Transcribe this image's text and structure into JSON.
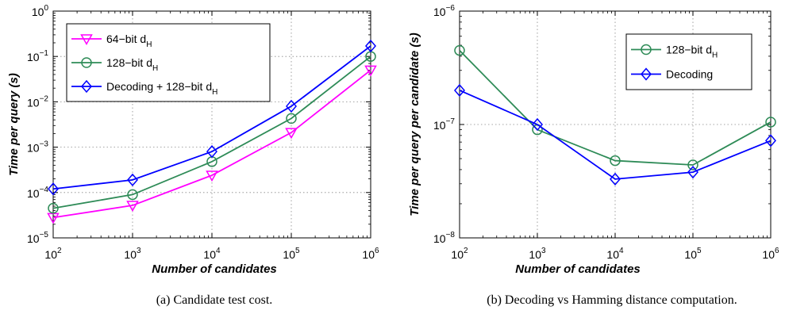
{
  "chart_data": [
    {
      "type": "line",
      "caption": "(a) Candidate test cost.",
      "xlabel": "Number of candidates",
      "ylabel": "Time per query (s)",
      "xscale": "log",
      "yscale": "log",
      "xlim": [
        100,
        1000000
      ],
      "ylim": [
        1e-05,
        1
      ],
      "grid": true,
      "legend_position": "top-left",
      "x": [
        100,
        1000,
        10000,
        100000,
        1000000
      ],
      "x_ticks": [
        {
          "base": "10",
          "exp": "2"
        },
        {
          "base": "10",
          "exp": "3"
        },
        {
          "base": "10",
          "exp": "4"
        },
        {
          "base": "10",
          "exp": "5"
        },
        {
          "base": "10",
          "exp": "6"
        }
      ],
      "y_ticks": [
        {
          "base": "10",
          "exp": "−5"
        },
        {
          "base": "10",
          "exp": "−4"
        },
        {
          "base": "10",
          "exp": "−3"
        },
        {
          "base": "10",
          "exp": "−2"
        },
        {
          "base": "10",
          "exp": "−1"
        },
        {
          "base": "10",
          "exp": "0"
        }
      ],
      "series": [
        {
          "name": "64−bit d",
          "name_sub": "H",
          "color": "#ff00ff",
          "marker": "triangle-down",
          "values": [
            2.8e-05,
            5.2e-05,
            0.00024,
            0.0021,
            0.05
          ]
        },
        {
          "name": "128−bit d",
          "name_sub": "H",
          "color": "#2e8b57",
          "marker": "circle",
          "values": [
            4.5e-05,
            9e-05,
            0.00048,
            0.0043,
            0.1
          ]
        },
        {
          "name": "Decoding + 128−bit d",
          "name_sub": "H",
          "color": "#0000ff",
          "marker": "diamond",
          "values": [
            0.00012,
            0.00019,
            0.0008,
            0.008,
            0.17
          ]
        }
      ]
    },
    {
      "type": "line",
      "caption": "(b) Decoding vs Hamming distance computation.",
      "xlabel": "Number of candidates",
      "ylabel": "Time per query per candidate (s)",
      "xscale": "log",
      "yscale": "log",
      "xlim": [
        100,
        1000000
      ],
      "ylim": [
        1e-08,
        1e-06
      ],
      "grid": true,
      "legend_position": "top-right",
      "x": [
        100,
        1000,
        10000,
        100000,
        1000000
      ],
      "x_ticks": [
        {
          "base": "10",
          "exp": "2"
        },
        {
          "base": "10",
          "exp": "3"
        },
        {
          "base": "10",
          "exp": "4"
        },
        {
          "base": "10",
          "exp": "5"
        },
        {
          "base": "10",
          "exp": "6"
        }
      ],
      "y_ticks": [
        {
          "base": "10",
          "exp": "−8"
        },
        {
          "base": "10",
          "exp": "−7"
        },
        {
          "base": "10",
          "exp": "−6"
        }
      ],
      "series": [
        {
          "name": "128−bit d",
          "name_sub": "H",
          "color": "#2e8b57",
          "marker": "circle",
          "values": [
            4.5e-07,
            9e-08,
            4.8e-08,
            4.4e-08,
            1.05e-07
          ]
        },
        {
          "name": "Decoding",
          "name_sub": "",
          "color": "#0000ff",
          "marker": "diamond",
          "values": [
            2e-07,
            1e-07,
            3.3e-08,
            3.8e-08,
            7.2e-08
          ]
        }
      ]
    }
  ]
}
